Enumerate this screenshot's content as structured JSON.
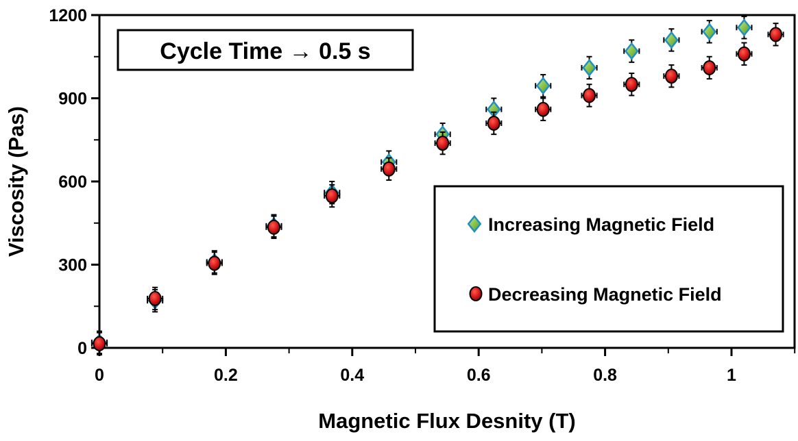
{
  "chart_data": {
    "type": "scatter",
    "title": "Cycle Time → 0.5 s",
    "xlabel": "Magnetic Flux Desnity (T)",
    "ylabel": "Viscosity (Pas)",
    "xlim": [
      0,
      1.1
    ],
    "ylim": [
      0,
      1200
    ],
    "xticks": [
      0,
      0.2,
      0.4,
      0.6,
      0.8,
      1
    ],
    "xtick_labels": [
      "0",
      "0.2",
      "0.4",
      "0.6",
      "0.8",
      "1"
    ],
    "yticks": [
      0,
      300,
      600,
      900,
      1200
    ],
    "ytick_labels": [
      "0",
      "300",
      "600",
      "900",
      "1200"
    ],
    "grid": false,
    "legend_position": "lower-right",
    "error_bars": {
      "x": 0.012,
      "y": 40
    },
    "series": [
      {
        "name": "Increasing Magnetic Field",
        "marker": "diamond",
        "color": "#7ac143",
        "edge_color": "#1e90c8",
        "x": [
          0,
          0.088,
          0.182,
          0.276,
          0.368,
          0.458,
          0.543,
          0.624,
          0.702,
          0.775,
          0.842,
          0.905,
          0.965,
          1.02
        ],
        "y": [
          20,
          170,
          310,
          440,
          560,
          670,
          770,
          860,
          945,
          1010,
          1070,
          1110,
          1140,
          1155
        ]
      },
      {
        "name": "Decreasing Magnetic Field",
        "marker": "circle",
        "color": "#d7191c",
        "edge_color": "#000000",
        "x": [
          0,
          0.088,
          0.182,
          0.276,
          0.368,
          0.458,
          0.543,
          0.624,
          0.702,
          0.775,
          0.842,
          0.905,
          0.965,
          1.02,
          1.07
        ],
        "y": [
          15,
          178,
          305,
          435,
          548,
          645,
          738,
          810,
          860,
          910,
          950,
          980,
          1010,
          1060,
          1130
        ]
      }
    ]
  }
}
